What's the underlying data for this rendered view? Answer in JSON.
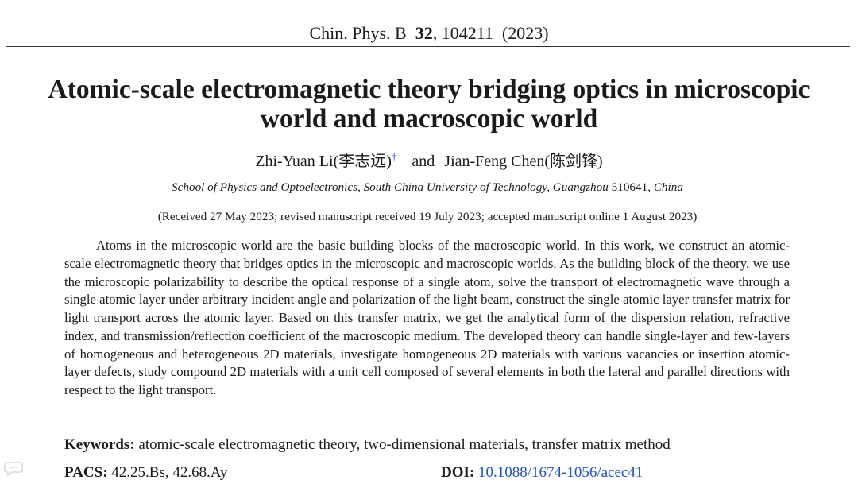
{
  "journal": {
    "name": "Chin. Phys. B",
    "volume": "32",
    "article": ", 104211",
    "year": "(2023)"
  },
  "title": {
    "line1": "Atomic-scale electromagnetic theory bridging optics in microscopic",
    "line2": "world and macroscopic world"
  },
  "authors": {
    "author1": "Zhi-Yuan Li(李志远)",
    "dagger": "†",
    "conjunction": "and",
    "author2": "Jian-Feng Chen(陈剑锋)"
  },
  "affiliation": {
    "text": "School of Physics and Optoelectronics, South China University of Technology, Guangzhou",
    "postcode": "510641",
    "country": "China"
  },
  "received": "(Received 27 May 2023; revised manuscript received 19 July 2023; accepted manuscript online 1 August 2023)",
  "abstract": "Atoms in the microscopic world are the basic building blocks of the macroscopic world. In this work, we construct an atomic-scale electromagnetic theory that bridges optics in the microscopic and macroscopic worlds. As the building block of the theory, we use the microscopic polarizability to describe the optical response of a single atom, solve the transport of electromagnetic wave through a single atomic layer under arbitrary incident angle and polarization of the light beam, construct the single atomic layer transfer matrix for light transport across the atomic layer. Based on this transfer matrix, we get the analytical form of the dispersion relation, refractive index, and transmission/reflection coefficient of the macroscopic medium. The developed theory can handle single-layer and few-layers of homogeneous and heterogeneous 2D materials, investigate homogeneous 2D materials with various vacancies or insertion atomic-layer defects, study compound 2D materials with a unit cell composed of several elements in both the lateral and parallel directions with respect to the light transport.",
  "keywords": {
    "label": "Keywords:",
    "value": "atomic-scale electromagnetic theory, two-dimensional materials, transfer matrix method"
  },
  "pacs": {
    "label": "PACS:",
    "value": "42.25.Bs, 42.68.Ay"
  },
  "doi": {
    "label": "DOI:",
    "value": "10.1088/1674-1056/acec41"
  },
  "watermark": {
    "icon": "chat-bubble-icon"
  },
  "colors": {
    "link": "#1f4fd1",
    "text": "#1a1a1a"
  }
}
